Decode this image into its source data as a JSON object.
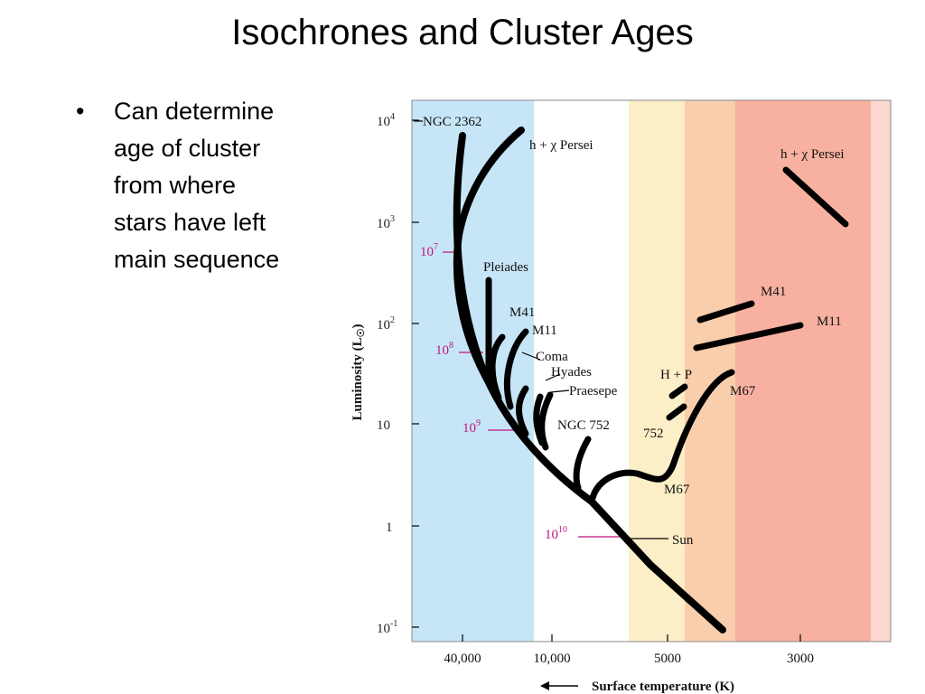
{
  "title": "Isochrones and Cluster Ages",
  "bullets": [
    {
      "marker": "•",
      "text": "Can determine\nage of cluster\nfrom where\nstars have left\nmain sequence"
    }
  ],
  "colors": {
    "hot_band": "#c6e6f8",
    "mid_band": "#fcefc8",
    "warm_band": "#f9ceac",
    "cool_band": "#f8b1a0",
    "track": "#000000",
    "age_label": "#c0157e"
  },
  "diagram": {
    "y_axis_label": "Luminosity (L",
    "y_axis_label_sub": "☉",
    "y_axis_label_close": ")",
    "x_axis_label": "Surface temperature (K)",
    "x_axis_arrow": "⟵",
    "y_ticks": [
      {
        "base": "10",
        "sup": "4"
      },
      {
        "base": "10",
        "sup": "3"
      },
      {
        "base": "10",
        "sup": "2"
      },
      {
        "base": "10",
        "sup": ""
      },
      {
        "base": "1",
        "sup": ""
      },
      {
        "base": "10",
        "sup": "-1"
      }
    ],
    "x_ticks": [
      "40,000",
      "10,000",
      "5000",
      "3000"
    ],
    "age_labels": [
      {
        "base": "10",
        "sup": "7"
      },
      {
        "base": "10",
        "sup": "8"
      },
      {
        "base": "10",
        "sup": "9"
      },
      {
        "base": "10",
        "sup": "10"
      }
    ],
    "cluster_labels": {
      "ngc2362": "NGC 2362",
      "hx_persei": "h + χ Persei",
      "hx_persei_giant": "h + χ Persei",
      "pleiades": "Pleiades",
      "m41": "M41",
      "m11": "M11",
      "coma": "Coma",
      "hyades": "Hyades",
      "praesepe": "Praesepe",
      "ngc752": "NGC 752",
      "hp": "H + P",
      "n752": "752",
      "m67_giant": "M67",
      "m67": "M67",
      "m41_giant": "M41",
      "m11_giant": "M11",
      "sun": "Sun"
    }
  }
}
